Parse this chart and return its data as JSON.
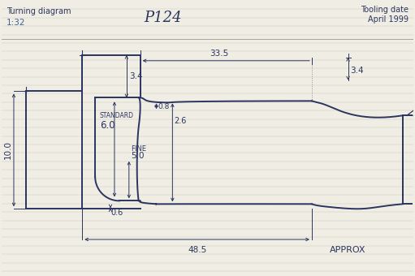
{
  "title_left": "Turning diagram",
  "scale": "1:32",
  "title_center": "P124",
  "title_right": "Tooling date\nApril 1999",
  "bg_color": "#f0ede4",
  "line_color": "#2a3560",
  "dim_color": "#2a3560",
  "label_standard": "STANDARD",
  "label_6": "6.0",
  "label_fine": "FINE",
  "label_5": "5.0",
  "label_0_6": "0.6",
  "label_3_4_top": "3.4",
  "label_3_4_right": "3.4",
  "label_33_5": "33.5",
  "label_10": "10.0",
  "label_0_8": "0.8",
  "label_2_6": "2.6",
  "label_48_5": "48.5",
  "label_approx": "APPROX",
  "figsize": [
    5.11,
    3.4
  ],
  "dpi": 100
}
